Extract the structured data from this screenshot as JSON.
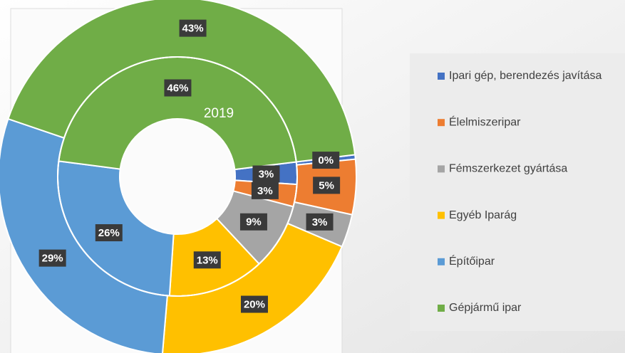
{
  "chart_data": {
    "type": "donut",
    "categories": [
      "Ipari gép, berendezés javítása",
      "Élelmiszeripar",
      "Fémszerkezet gyártása",
      "Egyéb Iparág",
      "Építőipar",
      "Gépjármű ipar"
    ],
    "colors": [
      "#4472c4",
      "#ed7d31",
      "#a5a5a5",
      "#ffc000",
      "#5b9bd5",
      "#70ad47"
    ],
    "series": [
      {
        "values": [
          3,
          3,
          9,
          13,
          26,
          46
        ],
        "value_labels": [
          "3%",
          "3%",
          "9%",
          "13%",
          "26%",
          "46%"
        ]
      },
      {
        "values": [
          0.4,
          5,
          3,
          20,
          29,
          43
        ],
        "value_labels": [
          "0%",
          "5%",
          "3%",
          "20%",
          "29%",
          "43%"
        ]
      }
    ],
    "annotation": "2019",
    "legend": "right"
  }
}
